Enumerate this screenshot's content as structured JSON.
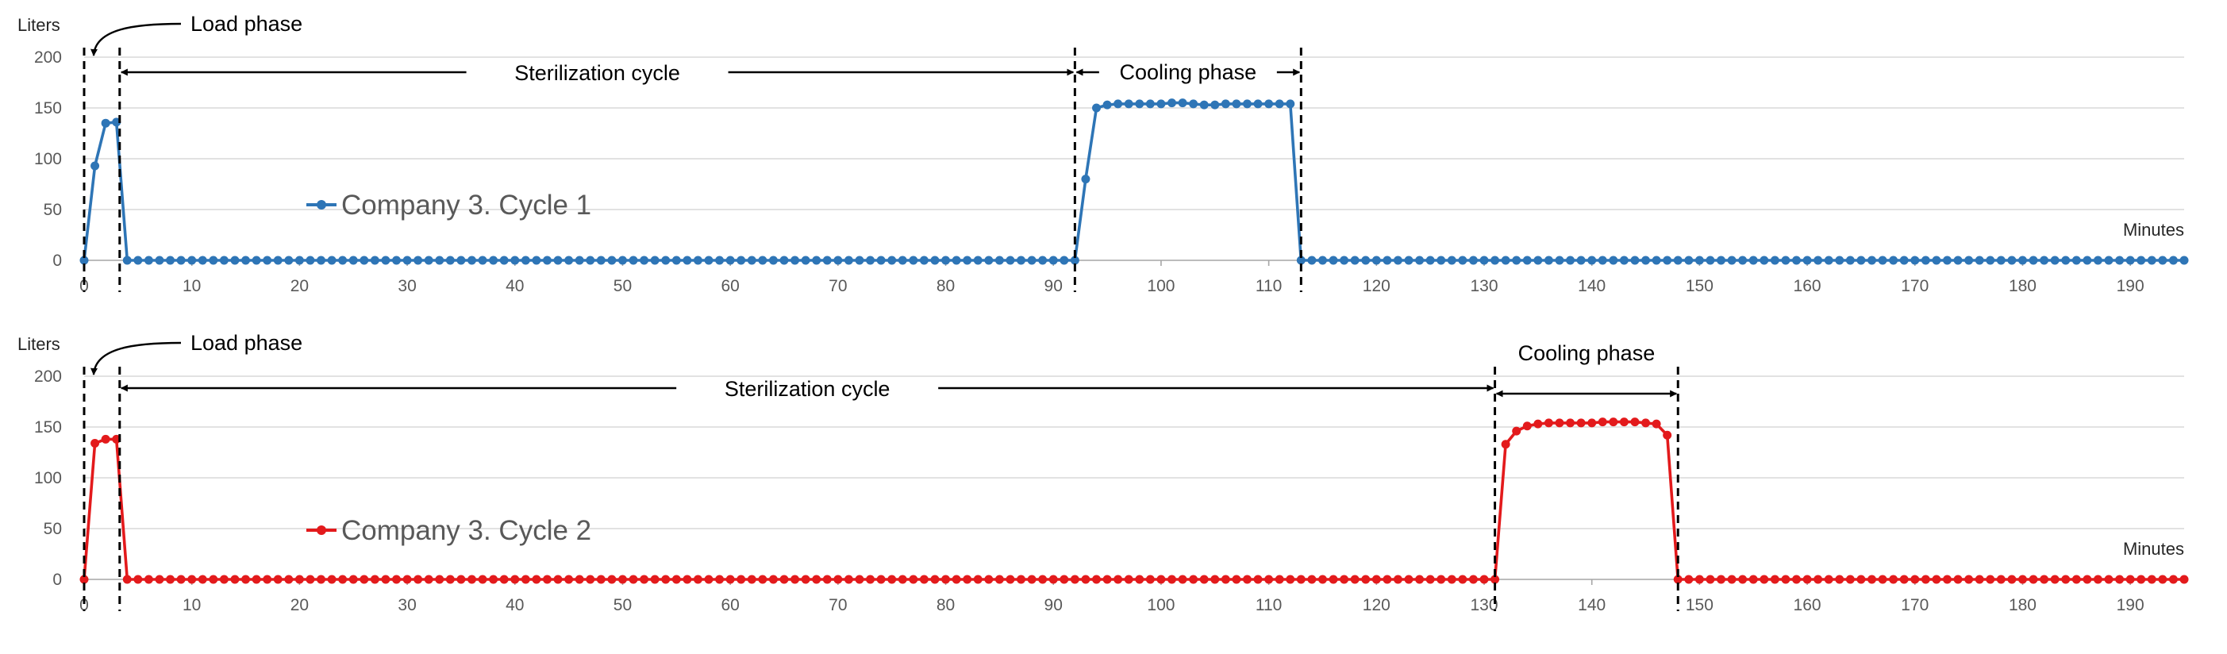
{
  "chart_data": [
    {
      "type": "line",
      "ylabel": "Liters",
      "xlabel": "Minutes",
      "ylim": [
        0,
        200
      ],
      "yticks": [
        0,
        50,
        100,
        150,
        200
      ],
      "xlim": [
        0,
        195
      ],
      "xticks": [
        0,
        10,
        20,
        30,
        40,
        50,
        60,
        70,
        80,
        90,
        100,
        110,
        120,
        130,
        140,
        150,
        160,
        170,
        180,
        190
      ],
      "grid": true,
      "legend": "left-middle",
      "series": [
        {
          "name": "Company 3. Cycle 1",
          "color": "#2e75b6",
          "plateau": [
            [
              93,
              80
            ],
            [
              94,
              150
            ],
            [
              95,
              153
            ],
            [
              96,
              154
            ],
            [
              97,
              154
            ],
            [
              98,
              154
            ],
            [
              99,
              154
            ],
            [
              100,
              154
            ],
            [
              101,
              155
            ],
            [
              102,
              155
            ],
            [
              103,
              154
            ],
            [
              104,
              153
            ],
            [
              105,
              153
            ],
            [
              106,
              154
            ],
            [
              107,
              154
            ],
            [
              108,
              154
            ],
            [
              109,
              154
            ],
            [
              110,
              154
            ],
            [
              111,
              154
            ],
            [
              112,
              154
            ]
          ],
          "load": [
            [
              0,
              0
            ],
            [
              1,
              93
            ],
            [
              2,
              135
            ],
            [
              3,
              136
            ]
          ]
        }
      ],
      "annotations": {
        "load_phase": "Load phase",
        "sterilization_cycle": "Sterilization cycle",
        "cooling_phase": "Cooling phase",
        "load_end_x": 3.3,
        "cooling_start_x": 92,
        "cooling_end_x": 113
      }
    },
    {
      "type": "line",
      "ylabel": "Liters",
      "xlabel": "Minutes",
      "ylim": [
        0,
        200
      ],
      "yticks": [
        0,
        50,
        100,
        150,
        200
      ],
      "xlim": [
        0,
        195
      ],
      "xticks": [
        0,
        10,
        20,
        30,
        40,
        50,
        60,
        70,
        80,
        90,
        100,
        110,
        120,
        130,
        140,
        150,
        160,
        170,
        180,
        190
      ],
      "grid": true,
      "legend": "left-middle",
      "series": [
        {
          "name": "Company 3. Cycle 2",
          "color": "#e31a1c",
          "plateau": [
            [
              132,
              133
            ],
            [
              133,
              146
            ],
            [
              134,
              151
            ],
            [
              135,
              153
            ],
            [
              136,
              154
            ],
            [
              137,
              154
            ],
            [
              138,
              154
            ],
            [
              139,
              154
            ],
            [
              140,
              154
            ],
            [
              141,
              155
            ],
            [
              142,
              155
            ],
            [
              143,
              155
            ],
            [
              144,
              155
            ],
            [
              145,
              154
            ],
            [
              146,
              153
            ],
            [
              147,
              142
            ]
          ],
          "load": [
            [
              0,
              0
            ],
            [
              1,
              134
            ],
            [
              2,
              138
            ],
            [
              3,
              138
            ]
          ]
        }
      ],
      "annotations": {
        "load_phase": "Load phase",
        "sterilization_cycle": "Sterilization cycle",
        "cooling_phase": "Cooling phase",
        "load_end_x": 3.3,
        "cooling_start_x": 131,
        "cooling_end_x": 148
      }
    }
  ]
}
